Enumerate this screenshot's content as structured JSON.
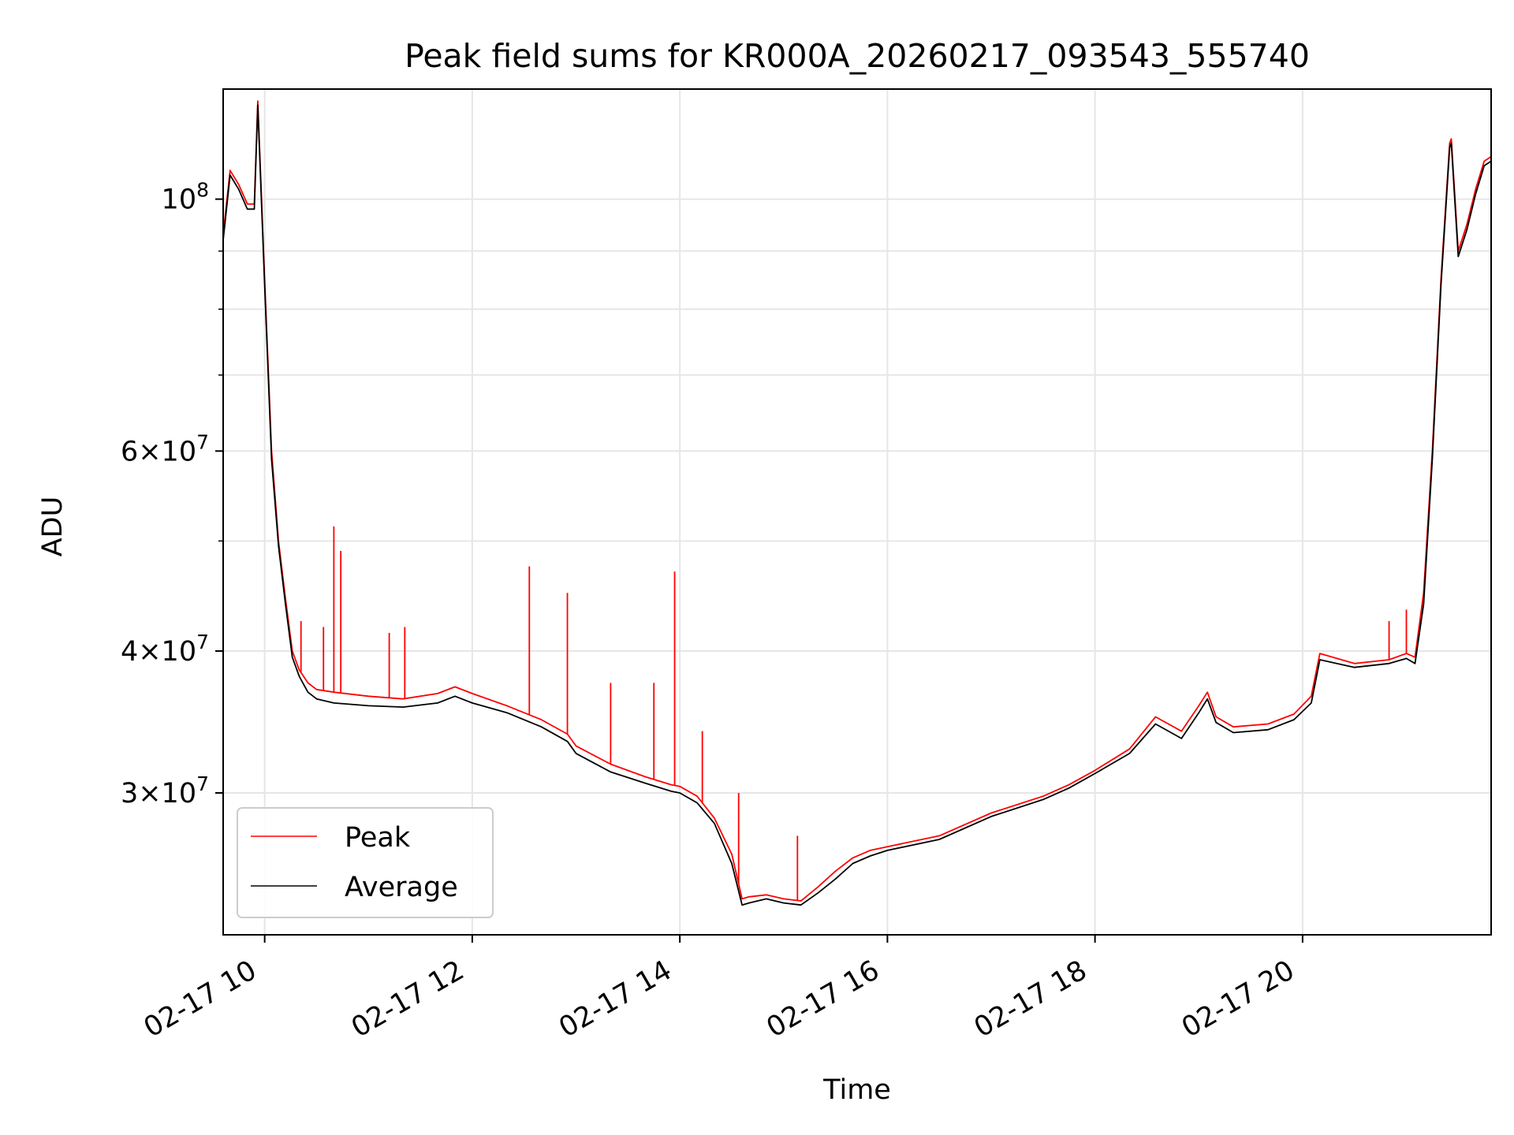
{
  "chart_data": {
    "type": "line",
    "title": "Peak field sums for KR000A_20260217_093543_555740",
    "xlabel": "Time",
    "ylabel": "ADU",
    "x_range": [
      "2026-02-17 09:36",
      "2026-02-17 21:49"
    ],
    "y_scale": "log",
    "ylim": [
      22500000,
      125000000
    ],
    "grid": true,
    "legend_position": "lower-left",
    "xticks": [
      {
        "time": "2026-02-17 10:00",
        "label": "02-17 10"
      },
      {
        "time": "2026-02-17 12:00",
        "label": "02-17 12"
      },
      {
        "time": "2026-02-17 14:00",
        "label": "02-17 14"
      },
      {
        "time": "2026-02-17 16:00",
        "label": "02-17 16"
      },
      {
        "time": "2026-02-17 18:00",
        "label": "02-17 18"
      },
      {
        "time": "2026-02-17 20:00",
        "label": "02-17 20"
      }
    ],
    "yticks_major": [
      {
        "value": 30000000,
        "mant": "3",
        "exp": "7"
      },
      {
        "value": 40000000,
        "mant": "4",
        "exp": "7"
      },
      {
        "value": 60000000,
        "mant": "6",
        "exp": "7"
      },
      {
        "value": 100000000,
        "mant": "",
        "exp": "8"
      }
    ],
    "yticks_minor": [
      50000000,
      70000000,
      80000000,
      90000000
    ],
    "x": [
      "2026-02-17 09:36",
      "2026-02-17 09:40",
      "2026-02-17 09:45",
      "2026-02-17 09:50",
      "2026-02-17 09:54",
      "2026-02-17 09:56",
      "2026-02-17 10:00",
      "2026-02-17 10:04",
      "2026-02-17 10:08",
      "2026-02-17 10:12",
      "2026-02-17 10:16",
      "2026-02-17 10:20",
      "2026-02-17 10:25",
      "2026-02-17 10:30",
      "2026-02-17 10:40",
      "2026-02-17 11:00",
      "2026-02-17 11:20",
      "2026-02-17 11:40",
      "2026-02-17 11:50",
      "2026-02-17 12:00",
      "2026-02-17 12:20",
      "2026-02-17 12:40",
      "2026-02-17 12:55",
      "2026-02-17 13:00",
      "2026-02-17 13:20",
      "2026-02-17 13:40",
      "2026-02-17 13:55",
      "2026-02-17 14:00",
      "2026-02-17 14:10",
      "2026-02-17 14:20",
      "2026-02-17 14:30",
      "2026-02-17 14:36",
      "2026-02-17 14:40",
      "2026-02-17 14:50",
      "2026-02-17 15:00",
      "2026-02-17 15:10",
      "2026-02-17 15:20",
      "2026-02-17 15:30",
      "2026-02-17 15:40",
      "2026-02-17 15:50",
      "2026-02-17 16:00",
      "2026-02-17 16:30",
      "2026-02-17 17:00",
      "2026-02-17 17:30",
      "2026-02-17 17:45",
      "2026-02-17 18:00",
      "2026-02-17 18:20",
      "2026-02-17 18:35",
      "2026-02-17 18:50",
      "2026-02-17 19:00",
      "2026-02-17 19:05",
      "2026-02-17 19:10",
      "2026-02-17 19:20",
      "2026-02-17 19:40",
      "2026-02-17 19:55",
      "2026-02-17 20:05",
      "2026-02-17 20:10",
      "2026-02-17 20:30",
      "2026-02-17 20:50",
      "2026-02-17 21:00",
      "2026-02-17 21:05",
      "2026-02-17 21:10",
      "2026-02-17 21:15",
      "2026-02-17 21:20",
      "2026-02-17 21:25",
      "2026-02-17 21:26",
      "2026-02-17 21:30",
      "2026-02-17 21:35",
      "2026-02-17 21:40",
      "2026-02-17 21:45",
      "2026-02-17 21:49"
    ],
    "series": [
      {
        "name": "Peak",
        "color": "#ff0000",
        "values": [
          93000000,
          106000000,
          103000000,
          99000000,
          99000000,
          122000000,
          85000000,
          60000000,
          50000000,
          44500000,
          40000000,
          38500000,
          37500000,
          37000000,
          36800000,
          36500000,
          36300000,
          36700000,
          37200000,
          36700000,
          35800000,
          34800000,
          33800000,
          33000000,
          31800000,
          31000000,
          30500000,
          30400000,
          29800000,
          28500000,
          26500000,
          24200000,
          24300000,
          24400000,
          24200000,
          24100000,
          24800000,
          25600000,
          26300000,
          26700000,
          26900000,
          27500000,
          28800000,
          29800000,
          30500000,
          31400000,
          32800000,
          35000000,
          34000000,
          35800000,
          36800000,
          35000000,
          34300000,
          34500000,
          35200000,
          36500000,
          39800000,
          39000000,
          39300000,
          39800000,
          39500000,
          45000000,
          60000000,
          85000000,
          112000000,
          113000000,
          90000000,
          95000000,
          102000000,
          108000000,
          109000000
        ]
      },
      {
        "name": "Average",
        "color": "#000000",
        "values": [
          92000000,
          105000000,
          102000000,
          98000000,
          98000000,
          121000000,
          84000000,
          59000000,
          49500000,
          44000000,
          39500000,
          38000000,
          36800000,
          36300000,
          36000000,
          35800000,
          35700000,
          36000000,
          36500000,
          36000000,
          35300000,
          34300000,
          33300000,
          32500000,
          31300000,
          30600000,
          30100000,
          30000000,
          29400000,
          28200000,
          26000000,
          23900000,
          24000000,
          24200000,
          24000000,
          23900000,
          24500000,
          25200000,
          26000000,
          26400000,
          26700000,
          27300000,
          28600000,
          29600000,
          30300000,
          31200000,
          32500000,
          34500000,
          33500000,
          35300000,
          36300000,
          34600000,
          33900000,
          34100000,
          34800000,
          36000000,
          39300000,
          38700000,
          39000000,
          39400000,
          39000000,
          44000000,
          59000000,
          84000000,
          111000000,
          112000000,
          89000000,
          94000000,
          101000000,
          107000000,
          108000000
        ]
      }
    ],
    "spikes": {
      "series": "Peak",
      "points": [
        {
          "time": "2026-02-17 10:21",
          "value": 42500000
        },
        {
          "time": "2026-02-17 10:34",
          "value": 42000000
        },
        {
          "time": "2026-02-17 10:40",
          "value": 51500000
        },
        {
          "time": "2026-02-17 10:44",
          "value": 49000000
        },
        {
          "time": "2026-02-17 11:12",
          "value": 41500000
        },
        {
          "time": "2026-02-17 11:21",
          "value": 42000000
        },
        {
          "time": "2026-02-17 12:33",
          "value": 47500000
        },
        {
          "time": "2026-02-17 12:55",
          "value": 45000000
        },
        {
          "time": "2026-02-17 13:20",
          "value": 37500000
        },
        {
          "time": "2026-02-17 13:45",
          "value": 37500000
        },
        {
          "time": "2026-02-17 13:57",
          "value": 47000000
        },
        {
          "time": "2026-02-17 14:13",
          "value": 34000000
        },
        {
          "time": "2026-02-17 14:34",
          "value": 30000000
        },
        {
          "time": "2026-02-17 15:08",
          "value": 27500000
        },
        {
          "time": "2026-02-17 20:50",
          "value": 42500000
        },
        {
          "time": "2026-02-17 21:00",
          "value": 43500000
        }
      ]
    },
    "legend": [
      {
        "label": "Peak",
        "color": "#ff0000"
      },
      {
        "label": "Average",
        "color": "#000000"
      }
    ]
  }
}
